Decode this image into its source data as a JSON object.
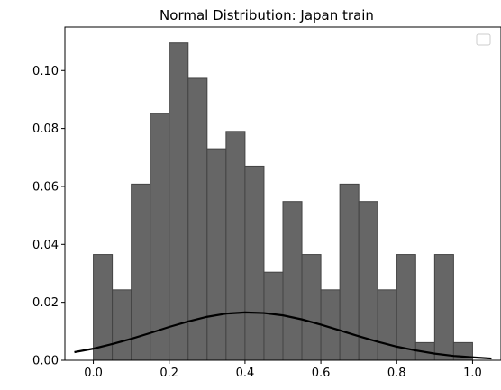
{
  "chart_data": {
    "type": "bar",
    "title": "Normal Distribution: Japan train",
    "xlabel": "",
    "ylabel": "",
    "xlim": [
      -0.075,
      1.075
    ],
    "ylim": [
      0.0,
      0.115
    ],
    "grid": false,
    "legend": "top-right",
    "legend_entries": [],
    "bar_color": "#666666",
    "bar_edge_color": "#444444",
    "curve_color": "#000000",
    "bins": {
      "left_edges": [
        0.0,
        0.05,
        0.1,
        0.15,
        0.2,
        0.25,
        0.3,
        0.35,
        0.4,
        0.45,
        0.5,
        0.55,
        0.6,
        0.65,
        0.7,
        0.75,
        0.8,
        0.85,
        0.9,
        0.95
      ],
      "width": 0.05,
      "values": [
        0.0365,
        0.0243,
        0.0608,
        0.0852,
        0.1095,
        0.0973,
        0.073,
        0.079,
        0.067,
        0.0304,
        0.0548,
        0.0365,
        0.0243,
        0.0608,
        0.0548,
        0.0243,
        0.0365,
        0.0061,
        0.0365,
        0.0061
      ]
    },
    "curve": {
      "x": [
        -0.05,
        0.0,
        0.05,
        0.1,
        0.15,
        0.2,
        0.25,
        0.3,
        0.35,
        0.4,
        0.45,
        0.5,
        0.55,
        0.6,
        0.65,
        0.7,
        0.75,
        0.8,
        0.85,
        0.9,
        0.95,
        1.0,
        1.05
      ],
      "y": [
        0.0028,
        0.004,
        0.0056,
        0.0074,
        0.0094,
        0.0115,
        0.0134,
        0.015,
        0.0161,
        0.0165,
        0.0163,
        0.0155,
        0.0141,
        0.0123,
        0.0103,
        0.0083,
        0.0064,
        0.0047,
        0.0034,
        0.0023,
        0.0015,
        0.001,
        0.0006
      ]
    },
    "x_ticks": [
      0.0,
      0.2,
      0.4,
      0.6,
      0.8,
      1.0
    ],
    "x_tick_labels": [
      "0.0",
      "0.2",
      "0.4",
      "0.6",
      "0.8",
      "1.0"
    ],
    "y_ticks": [
      0.0,
      0.02,
      0.04,
      0.06,
      0.08,
      0.1
    ],
    "y_tick_labels": [
      "0.00",
      "0.02",
      "0.04",
      "0.06",
      "0.08",
      "0.10"
    ]
  }
}
